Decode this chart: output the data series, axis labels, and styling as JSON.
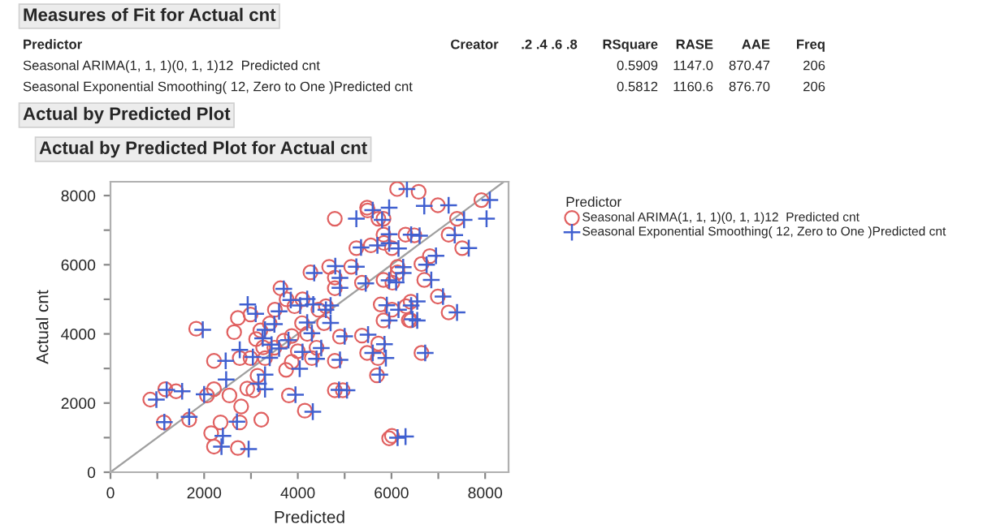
{
  "chart_data": {
    "type": "scatter",
    "title": "Actual by Predicted Plot for Actual cnt",
    "xlabel": "Predicted",
    "ylabel": "Actual cnt",
    "legend_title": "Predictor",
    "annotations": [
      "Measures of Fit for Actual cnt",
      "Predictor",
      "Creator",
      ".2 .4 .6 .8",
      "RSquare",
      "RASE",
      "AAE",
      "Freq",
      "Seasonal ARIMA(1, 1, 1)(0, 1, 1)12  Predicted cnt",
      "0.5909",
      "1147.0",
      "870.47",
      "206",
      "Seasonal Exponential Smoothing( 12, Zero to One )Predicted cnt",
      "0.5812",
      "1160.6",
      "876.70",
      "206",
      "Actual by Predicted Plot"
    ],
    "xlim": [
      0,
      8500
    ],
    "ylim": [
      0,
      8400
    ],
    "xticks": [
      0,
      {
        "value": 1000,
        "label": null
      },
      2000,
      {
        "value": 3000,
        "label": null
      },
      4000,
      {
        "value": 5000,
        "label": null
      },
      6000,
      {
        "value": 7000,
        "label": null
      },
      8000
    ],
    "yticks": [
      0,
      {
        "value": 1000,
        "label": null
      },
      2000,
      {
        "value": 3000,
        "label": null
      },
      4000,
      {
        "value": 5000,
        "label": null
      },
      6000,
      {
        "value": 7000,
        "label": null
      },
      8000
    ],
    "grid": false,
    "legend": "right",
    "series": [
      {
        "name": "Seasonal ARIMA(1, 1, 1)(0, 1, 1)12  Predicted cnt",
        "color": "#e06060",
        "marker": "circle",
        "x": [
          850,
          1140,
          1170,
          1400,
          1680,
          1830,
          2060,
          2150,
          2210,
          2210,
          2210,
          2350,
          2540,
          2640,
          2720,
          2760,
          2760,
          2790,
          2920,
          2990,
          3050,
          3140,
          3220,
          3260,
          3750,
          3810,
          3870,
          3870,
          4150,
          4790,
          4960,
          4790,
          5710,
          5690,
          6010,
          5950,
          6640,
          5370,
          2720,
          2990,
          3110,
          3510,
          3630,
          3760,
          3930,
          4090,
          4270,
          4440,
          4560,
          4670,
          4790,
          4790,
          5140,
          5370,
          5250,
          5490,
          5720,
          5840,
          6020,
          6120,
          6130,
          6310,
          6370,
          6490,
          5720,
          5480,
          5830,
          6580,
          6990,
          7400,
          7920,
          5830,
          6300,
          7220,
          7510,
          6010,
          5560,
          6820,
          6640,
          6130,
          6700,
          5830,
          4790,
          5770,
          6010,
          6410,
          6990,
          7220,
          5830,
          6410,
          4900,
          5480,
          3300,
          3500,
          3700,
          4000,
          4200,
          4400,
          3200,
          4300,
          4600,
          3400,
          4100
        ],
        "values": [
          2100,
          1440,
          2400,
          2340,
          1520,
          4150,
          2220,
          1130,
          740,
          2400,
          3220,
          1440,
          2220,
          4050,
          700,
          1440,
          3300,
          1900,
          2420,
          3300,
          2370,
          2790,
          1520,
          3610,
          2960,
          2220,
          3940,
          3190,
          1780,
          2370,
          2370,
          3220,
          3300,
          2800,
          1050,
          980,
          3450,
          3950,
          4460,
          4560,
          3850,
          4700,
          5320,
          5000,
          4800,
          4310,
          5780,
          4700,
          4310,
          5940,
          5630,
          7330,
          5940,
          5480,
          6480,
          7570,
          7330,
          6630,
          5480,
          8190,
          5780,
          4800,
          4400,
          6850,
          3720,
          7650,
          7330,
          8110,
          7720,
          7330,
          7870,
          6870,
          6870,
          6870,
          6480,
          6480,
          6560,
          6250,
          6020,
          5940,
          5560,
          5560,
          5320,
          4850,
          4700,
          4930,
          5080,
          4620,
          4390,
          4390,
          3920,
          3450,
          3300,
          3600,
          3800,
          3500,
          4000,
          3600,
          4100,
          3300,
          4800,
          4300,
          5000
        ]
      },
      {
        "name": "Seasonal Exponential Smoothing( 12, Zero to One )Predicted cnt",
        "color": "#4060d0",
        "marker": "cross",
        "x": [
          980,
          1150,
          1200,
          1530,
          1680,
          1970,
          2000,
          2370,
          2460,
          2400,
          2470,
          2950,
          2700,
          2760,
          3040,
          3160,
          3300,
          3440,
          3300,
          4040,
          3950,
          4320,
          4880,
          5050,
          4900,
          5880,
          5750,
          6300,
          6130,
          6720,
          5500,
          2930,
          3100,
          3250,
          3600,
          3700,
          3850,
          4050,
          4200,
          4350,
          4330,
          4600,
          4700,
          4800,
          4900,
          5250,
          5250,
          5450,
          5350,
          5600,
          5800,
          5950,
          6100,
          6330,
          6250,
          6420,
          6450,
          6600,
          5850,
          5950,
          6700,
          7220,
          7550,
          8100,
          8030,
          5950,
          6420,
          7350,
          7650,
          6150,
          5700,
          6950,
          6750,
          6250,
          6850,
          5950,
          4900,
          5900,
          6150,
          6550,
          7100,
          7400,
          5950,
          6550,
          5000,
          5600,
          3400,
          3600,
          3800,
          4100,
          4300,
          4500,
          3300,
          4400,
          4700,
          3500,
          4200
        ],
        "values": [
          2100,
          1450,
          2380,
          2340,
          1600,
          4120,
          2250,
          740,
          3220,
          1050,
          2680,
          670,
          1460,
          3540,
          3330,
          2560,
          2400,
          3690,
          2820,
          2990,
          2240,
          1750,
          2380,
          2370,
          3250,
          3300,
          2820,
          1030,
          1000,
          3450,
          3980,
          4850,
          4580,
          3870,
          4650,
          5300,
          4980,
          4820,
          4330,
          5760,
          4850,
          4700,
          4320,
          5960,
          5620,
          7330,
          5940,
          5460,
          6500,
          7580,
          7300,
          6620,
          5490,
          8190,
          5760,
          4820,
          4420,
          6840,
          3700,
          7650,
          7700,
          7720,
          7300,
          7870,
          7330,
          6880,
          6870,
          6860,
          6480,
          6470,
          6560,
          6260,
          6000,
          5930,
          5560,
          5550,
          5330,
          4830,
          4700,
          4940,
          5080,
          4620,
          4390,
          4390,
          3930,
          3450,
          3310,
          3580,
          3820,
          3480,
          4020,
          3590,
          4120,
          3280,
          4820,
          4280,
          5010
        ]
      },
      {
        "type": "line",
        "color": "#a0a0a0",
        "x": [
          0,
          8400
        ],
        "values": [
          0,
          8400
        ]
      }
    ]
  }
}
